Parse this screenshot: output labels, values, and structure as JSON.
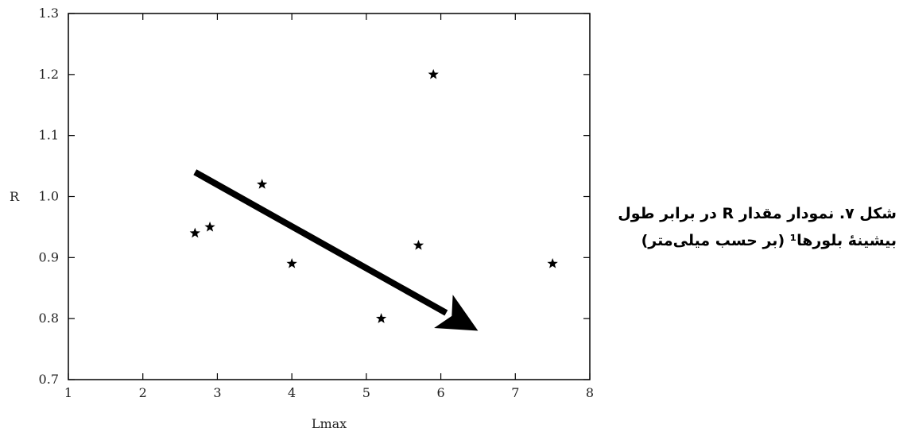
{
  "chart_data": {
    "type": "scatter",
    "title": "",
    "xlabel": "Lmax",
    "ylabel": "R",
    "xlim": [
      1,
      8
    ],
    "ylim": [
      0.7,
      1.3
    ],
    "x_ticks": [
      "1",
      "2",
      "3",
      "4",
      "5",
      "6",
      "7",
      "8"
    ],
    "y_ticks": [
      "0.7",
      "0.8",
      "0.9",
      "1.0",
      "1.1",
      "1.2",
      "1.3"
    ],
    "marker": "star",
    "grid": false,
    "series": [
      {
        "points": [
          {
            "x": 2.7,
            "y": 0.94
          },
          {
            "x": 2.9,
            "y": 0.95
          },
          {
            "x": 3.6,
            "y": 1.02
          },
          {
            "x": 4.0,
            "y": 0.89
          },
          {
            "x": 5.2,
            "y": 0.8
          },
          {
            "x": 5.7,
            "y": 0.92
          },
          {
            "x": 5.9,
            "y": 1.2
          },
          {
            "x": 7.5,
            "y": 0.89
          }
        ]
      }
    ],
    "annotations": [
      {
        "type": "trend-arrow",
        "from": {
          "x": 2.7,
          "y": 1.04
        },
        "to": {
          "x": 6.5,
          "y": 0.78
        },
        "color": "#000000"
      }
    ]
  },
  "caption": {
    "line1": "شکل ۷.  نمودار مقدار R در برابر طول",
    "line2": "بیشینهٔ بلورها¹ (بر حسب میلی‌متر)"
  }
}
